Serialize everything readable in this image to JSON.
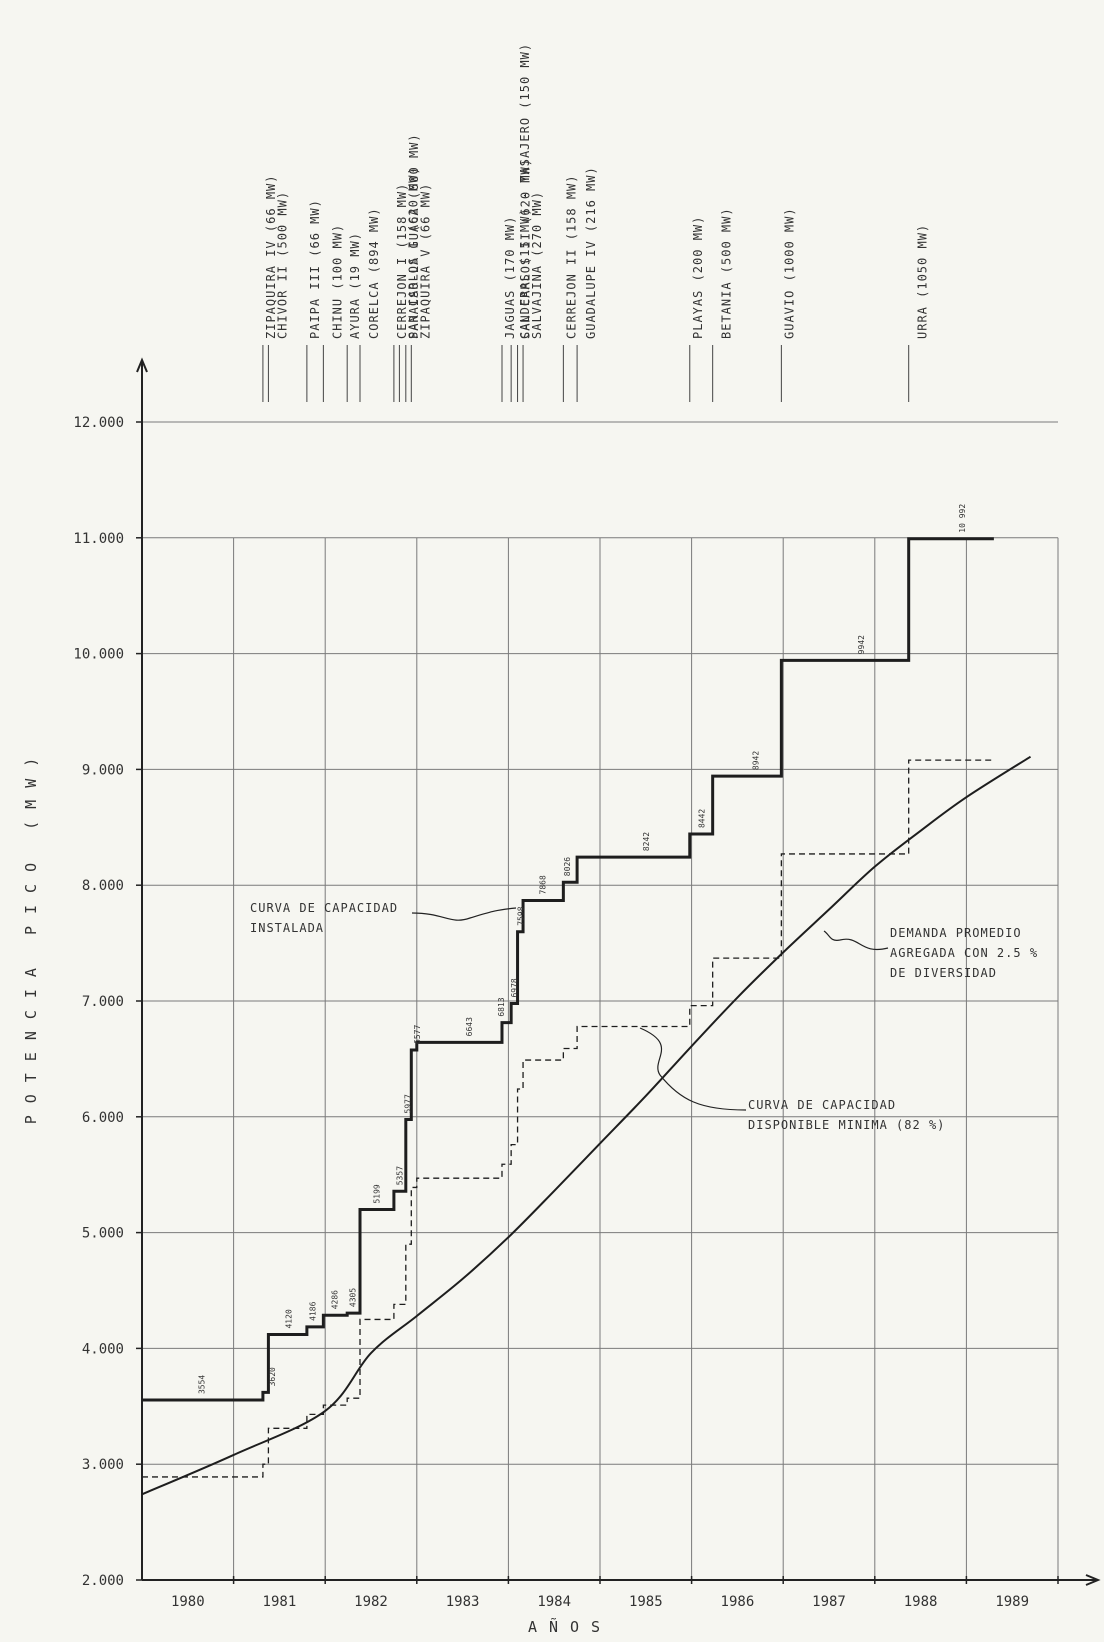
{
  "chart_data": {
    "type": "line",
    "xlabel": "AÑOS",
    "ylabel": "POTENCIA   PICO   (MW)",
    "xlim": [
      1979.5,
      1989.5
    ],
    "ylim": [
      2000,
      12000
    ],
    "x_ticks": [
      "1980",
      "1981",
      "1982",
      "1983",
      "1984",
      "1985",
      "1986",
      "1987",
      "1988",
      "1989"
    ],
    "y_ticks": [
      "2.000",
      "3.000",
      "4.000",
      "5.000",
      "6.000",
      "7.000",
      "8.000",
      "9.000",
      "10.000",
      "11.000",
      "12.000"
    ],
    "y_tick_values": [
      2000,
      3000,
      4000,
      5000,
      6000,
      7000,
      8000,
      9000,
      10000,
      11000,
      12000
    ],
    "grid": true,
    "series": [
      {
        "name": "CURVA DE CAPACIDAD INSTALADA",
        "style": "solid-thick-step",
        "steps": [
          [
            1979.5,
            3554
          ],
          [
            1980.82,
            3620
          ],
          [
            1980.88,
            4120
          ],
          [
            1981.3,
            4186
          ],
          [
            1981.48,
            4286
          ],
          [
            1981.74,
            4305
          ],
          [
            1981.88,
            5199
          ],
          [
            1982.25,
            5357
          ],
          [
            1982.38,
            5977
          ],
          [
            1982.44,
            6577
          ],
          [
            1982.5,
            6643
          ],
          [
            1983.43,
            6813
          ],
          [
            1983.53,
            6978
          ],
          [
            1983.6,
            7598
          ],
          [
            1983.66,
            7868
          ],
          [
            1984.1,
            8026
          ],
          [
            1984.25,
            8242
          ],
          [
            1985.48,
            8442
          ],
          [
            1985.73,
            8942
          ],
          [
            1986.48,
            9942
          ],
          [
            1987.87,
            10992
          ],
          [
            1988.8,
            10992
          ]
        ]
      },
      {
        "name": "CURVA DE CAPACIDAD DISPONIBLE MINIMA (82 %)",
        "style": "dashed-step",
        "steps": [
          [
            1979.5,
            2890
          ],
          [
            1980.82,
            3000
          ],
          [
            1980.88,
            3310
          ],
          [
            1981.3,
            3430
          ],
          [
            1981.48,
            3510
          ],
          [
            1981.74,
            3570
          ],
          [
            1981.88,
            4250
          ],
          [
            1982.25,
            4380
          ],
          [
            1982.38,
            4900
          ],
          [
            1982.44,
            5390
          ],
          [
            1982.5,
            5470
          ],
          [
            1983.43,
            5590
          ],
          [
            1983.53,
            5760
          ],
          [
            1983.6,
            6240
          ],
          [
            1983.66,
            6490
          ],
          [
            1984.1,
            6590
          ],
          [
            1984.25,
            6780
          ],
          [
            1985.48,
            6960
          ],
          [
            1985.73,
            7370
          ],
          [
            1986.48,
            8270
          ],
          [
            1987.87,
            9080
          ],
          [
            1988.8,
            9080
          ]
        ]
      },
      {
        "name": "DEMANDA PROMEDIO AGREGADA CON 2.5 % DE DIVERSIDAD",
        "style": "solid-smooth",
        "points": [
          [
            1979.5,
            2740
          ],
          [
            1980.5,
            3080
          ],
          [
            1981.5,
            3460
          ],
          [
            1982,
            3960
          ],
          [
            1982.5,
            4280
          ],
          [
            1983,
            4600
          ],
          [
            1983.5,
            4960
          ],
          [
            1984,
            5360
          ],
          [
            1984.5,
            5770
          ],
          [
            1985,
            6180
          ],
          [
            1985.5,
            6610
          ],
          [
            1986,
            7030
          ],
          [
            1986.5,
            7420
          ],
          [
            1987,
            7790
          ],
          [
            1987.5,
            8160
          ],
          [
            1988,
            8470
          ],
          [
            1988.5,
            8760
          ],
          [
            1989.2,
            9110
          ]
        ]
      }
    ],
    "value_labels": [
      {
        "x": 1980.15,
        "y": 3554,
        "text": "3554"
      },
      {
        "x": 1980.92,
        "y": 3620,
        "text": "3620"
      },
      {
        "x": 1981.1,
        "y": 4120,
        "text": "4120"
      },
      {
        "x": 1981.36,
        "y": 4186,
        "text": "4186"
      },
      {
        "x": 1981.6,
        "y": 4286,
        "text": "4286"
      },
      {
        "x": 1981.8,
        "y": 4305,
        "text": "4305"
      },
      {
        "x": 1982.06,
        "y": 5199,
        "text": "5199"
      },
      {
        "x": 1982.31,
        "y": 5357,
        "text": "5357"
      },
      {
        "x": 1982.4,
        "y": 5977,
        "text": "5977"
      },
      {
        "x": 1982.5,
        "y": 6577,
        "text": "6577"
      },
      {
        "x": 1983.07,
        "y": 6643,
        "text": "6643"
      },
      {
        "x": 1983.42,
        "y": 6813,
        "text": "6813"
      },
      {
        "x": 1983.56,
        "y": 6978,
        "text": "6978"
      },
      {
        "x": 1983.63,
        "y": 7598,
        "text": "7598"
      },
      {
        "x": 1983.87,
        "y": 7868,
        "text": "7868"
      },
      {
        "x": 1984.14,
        "y": 8026,
        "text": "8026"
      },
      {
        "x": 1985.0,
        "y": 8242,
        "text": "8242"
      },
      {
        "x": 1985.61,
        "y": 8442,
        "text": "8442"
      },
      {
        "x": 1986.2,
        "y": 8942,
        "text": "8942"
      },
      {
        "x": 1987.35,
        "y": 9942,
        "text": "9942"
      },
      {
        "x": 1988.45,
        "y": 10992,
        "text": "10 992"
      }
    ],
    "annotations": [
      {
        "key": "instalada",
        "lines": [
          "CURVA DE CAPACIDAD",
          "INSTALADA"
        ]
      },
      {
        "key": "disponible",
        "lines": [
          "CURVA DE CAPACIDAD",
          "DISPONIBLE MINIMA (82 %)"
        ]
      },
      {
        "key": "demanda",
        "lines": [
          "DEMANDA PROMEDIO",
          "AGREGADA CON 2.5 %",
          "DE DIVERSIDAD"
        ]
      }
    ],
    "plant_additions": [
      {
        "x": 1980.82,
        "label": "ZIPAQUIRA  IV  (66 MW)"
      },
      {
        "x": 1980.88,
        "label": "CHIVOR  II  (500 MW)"
      },
      {
        "x": 1981.3,
        "label": "PAIPA  III  (66 MW)"
      },
      {
        "x": 1981.48,
        "label": "CHINU  (100 MW)"
      },
      {
        "x": 1981.74,
        "label": "AYURA  (19 MW)"
      },
      {
        "x": 1981.88,
        "label": "CORELCA (894 MW)"
      },
      {
        "x": 1982.25,
        "label": "CERREJON  I  (158 MW)"
      },
      {
        "x": 1982.31,
        "label": "SAN CARLOS  I  (620 MW)"
      },
      {
        "x": 1982.38,
        "label": "PARAISO-LA GUACA (600 MW)"
      },
      {
        "x": 1982.44,
        "label": "ZIPAQUIRA  V  (66 MW)"
      },
      {
        "x": 1983.43,
        "label": "JAGUAS (170 MW)"
      },
      {
        "x": 1983.53,
        "label": "CALDERAS (15 MW) - TASAJERO (150 MW)"
      },
      {
        "x": 1983.6,
        "label": "SAN CARLOS  II  (620 MW)"
      },
      {
        "x": 1983.66,
        "label": "SALVAJINA  (270 MW)"
      },
      {
        "x": 1984.1,
        "label": "CERREJON  II  (158 MW)"
      },
      {
        "x": 1984.25,
        "label": "GUADALUPE  IV  (216 MW)"
      },
      {
        "x": 1985.48,
        "label": "PLAYAS  (200 MW)"
      },
      {
        "x": 1985.73,
        "label": "BETANIA  (500 MW)"
      },
      {
        "x": 1986.48,
        "label": "GUAVIO  (1000 MW)"
      },
      {
        "x": 1987.87,
        "label": "URRA  (1050 MW)"
      }
    ]
  }
}
